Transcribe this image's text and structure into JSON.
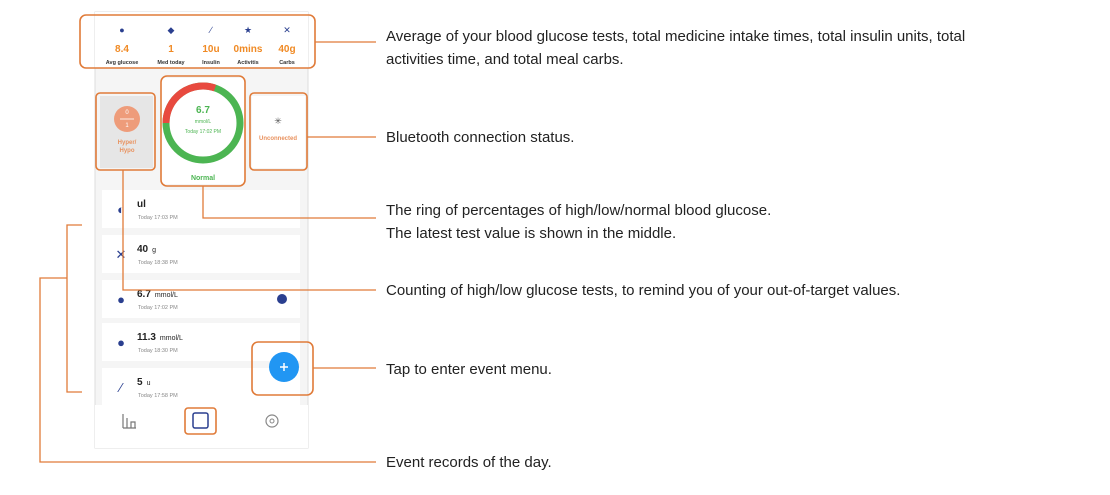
{
  "stats": [
    {
      "value": "8.4",
      "label": "Avg glucose"
    },
    {
      "value": "1",
      "label": "Med today"
    },
    {
      "value": "10u",
      "label": "Insulin"
    },
    {
      "value": "0mins",
      "label": "Activitis"
    },
    {
      "value": "40g",
      "label": "Carbs"
    }
  ],
  "latest": {
    "value": "6.7",
    "unit": "mmol/L",
    "time": "Today 17:02 PM",
    "status": "Normal"
  },
  "hyper_hypo": {
    "hyper_count": "0",
    "hypo_count": "1",
    "label_top": "Hyper/",
    "label_bottom": "Hypo"
  },
  "bluetooth": "Unconnected",
  "events": [
    {
      "value": "ul",
      "time": "Today 17:03 PM"
    },
    {
      "value": "40",
      "unit": "g",
      "time": "Today 18:38 PM"
    },
    {
      "value": "6.7",
      "unit": "mmol/L",
      "time": "Today 17:02 PM"
    },
    {
      "value": "11.3",
      "unit": "mmol/L",
      "time": "Today 18:30 PM"
    },
    {
      "value": "5",
      "unit": "u",
      "time": "Today 17:58 PM"
    }
  ],
  "annotations": [
    {
      "lines": [
        "Average of your blood glucose tests, total medicine intake times, total insulin units, total",
        "activities time, and total meal carbs."
      ]
    },
    {
      "lines": [
        "Bluetooth connection status."
      ]
    },
    {
      "lines": [
        "The ring of percentages of high/low/normal blood glucose.",
        "The latest test value is shown in the middle."
      ]
    },
    {
      "lines": [
        "Counting of high/low glucose tests, to remind you of your out-of-target values."
      ]
    },
    {
      "lines": [
        "Tap to enter event menu."
      ]
    },
    {
      "lines": [
        "Event records of the day."
      ]
    }
  ]
}
